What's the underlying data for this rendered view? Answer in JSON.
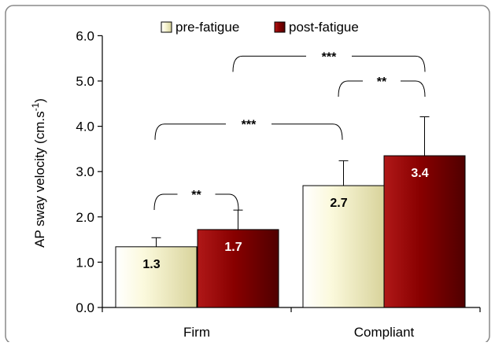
{
  "chart_data": {
    "type": "bar",
    "ylabel": "AP sway velocity (cm.s",
    "ylabel_sup": "-1",
    "ylabel_close": ")",
    "ylim": [
      0,
      6
    ],
    "yticks": [
      "0.0",
      "1.0",
      "2.0",
      "3.0",
      "4.0",
      "5.0",
      "6.0"
    ],
    "categories": [
      "Firm",
      "Compliant"
    ],
    "series": [
      {
        "name": "pre-fatigue",
        "values": [
          1.34,
          2.69
        ],
        "errors": [
          0.2,
          0.55
        ],
        "labels": [
          "1.3",
          "2.7"
        ]
      },
      {
        "name": "post-fatigue",
        "values": [
          1.72,
          3.35
        ],
        "errors": [
          0.43,
          0.86
        ],
        "labels": [
          "1.7",
          "3.4"
        ]
      }
    ],
    "legend": {
      "position": "top"
    },
    "significance": [
      {
        "label": "**",
        "between": "Firm pre-fatigue vs post-fatigue",
        "y": 2.5
      },
      {
        "label": "***",
        "between": "Firm post-fatigue vs Compliant pre-fatigue",
        "y": 4.05
      },
      {
        "label": "**",
        "between": "Compliant pre-fatigue vs post-fatigue",
        "y": 5.0
      },
      {
        "label": "***",
        "between": "Firm post-fatigue vs Compliant post-fatigue",
        "y": 5.55
      }
    ],
    "colors": {
      "pre_fatigue": "#f4f1c4",
      "post_fatigue": "#8b0000",
      "frame": "#888888"
    }
  }
}
